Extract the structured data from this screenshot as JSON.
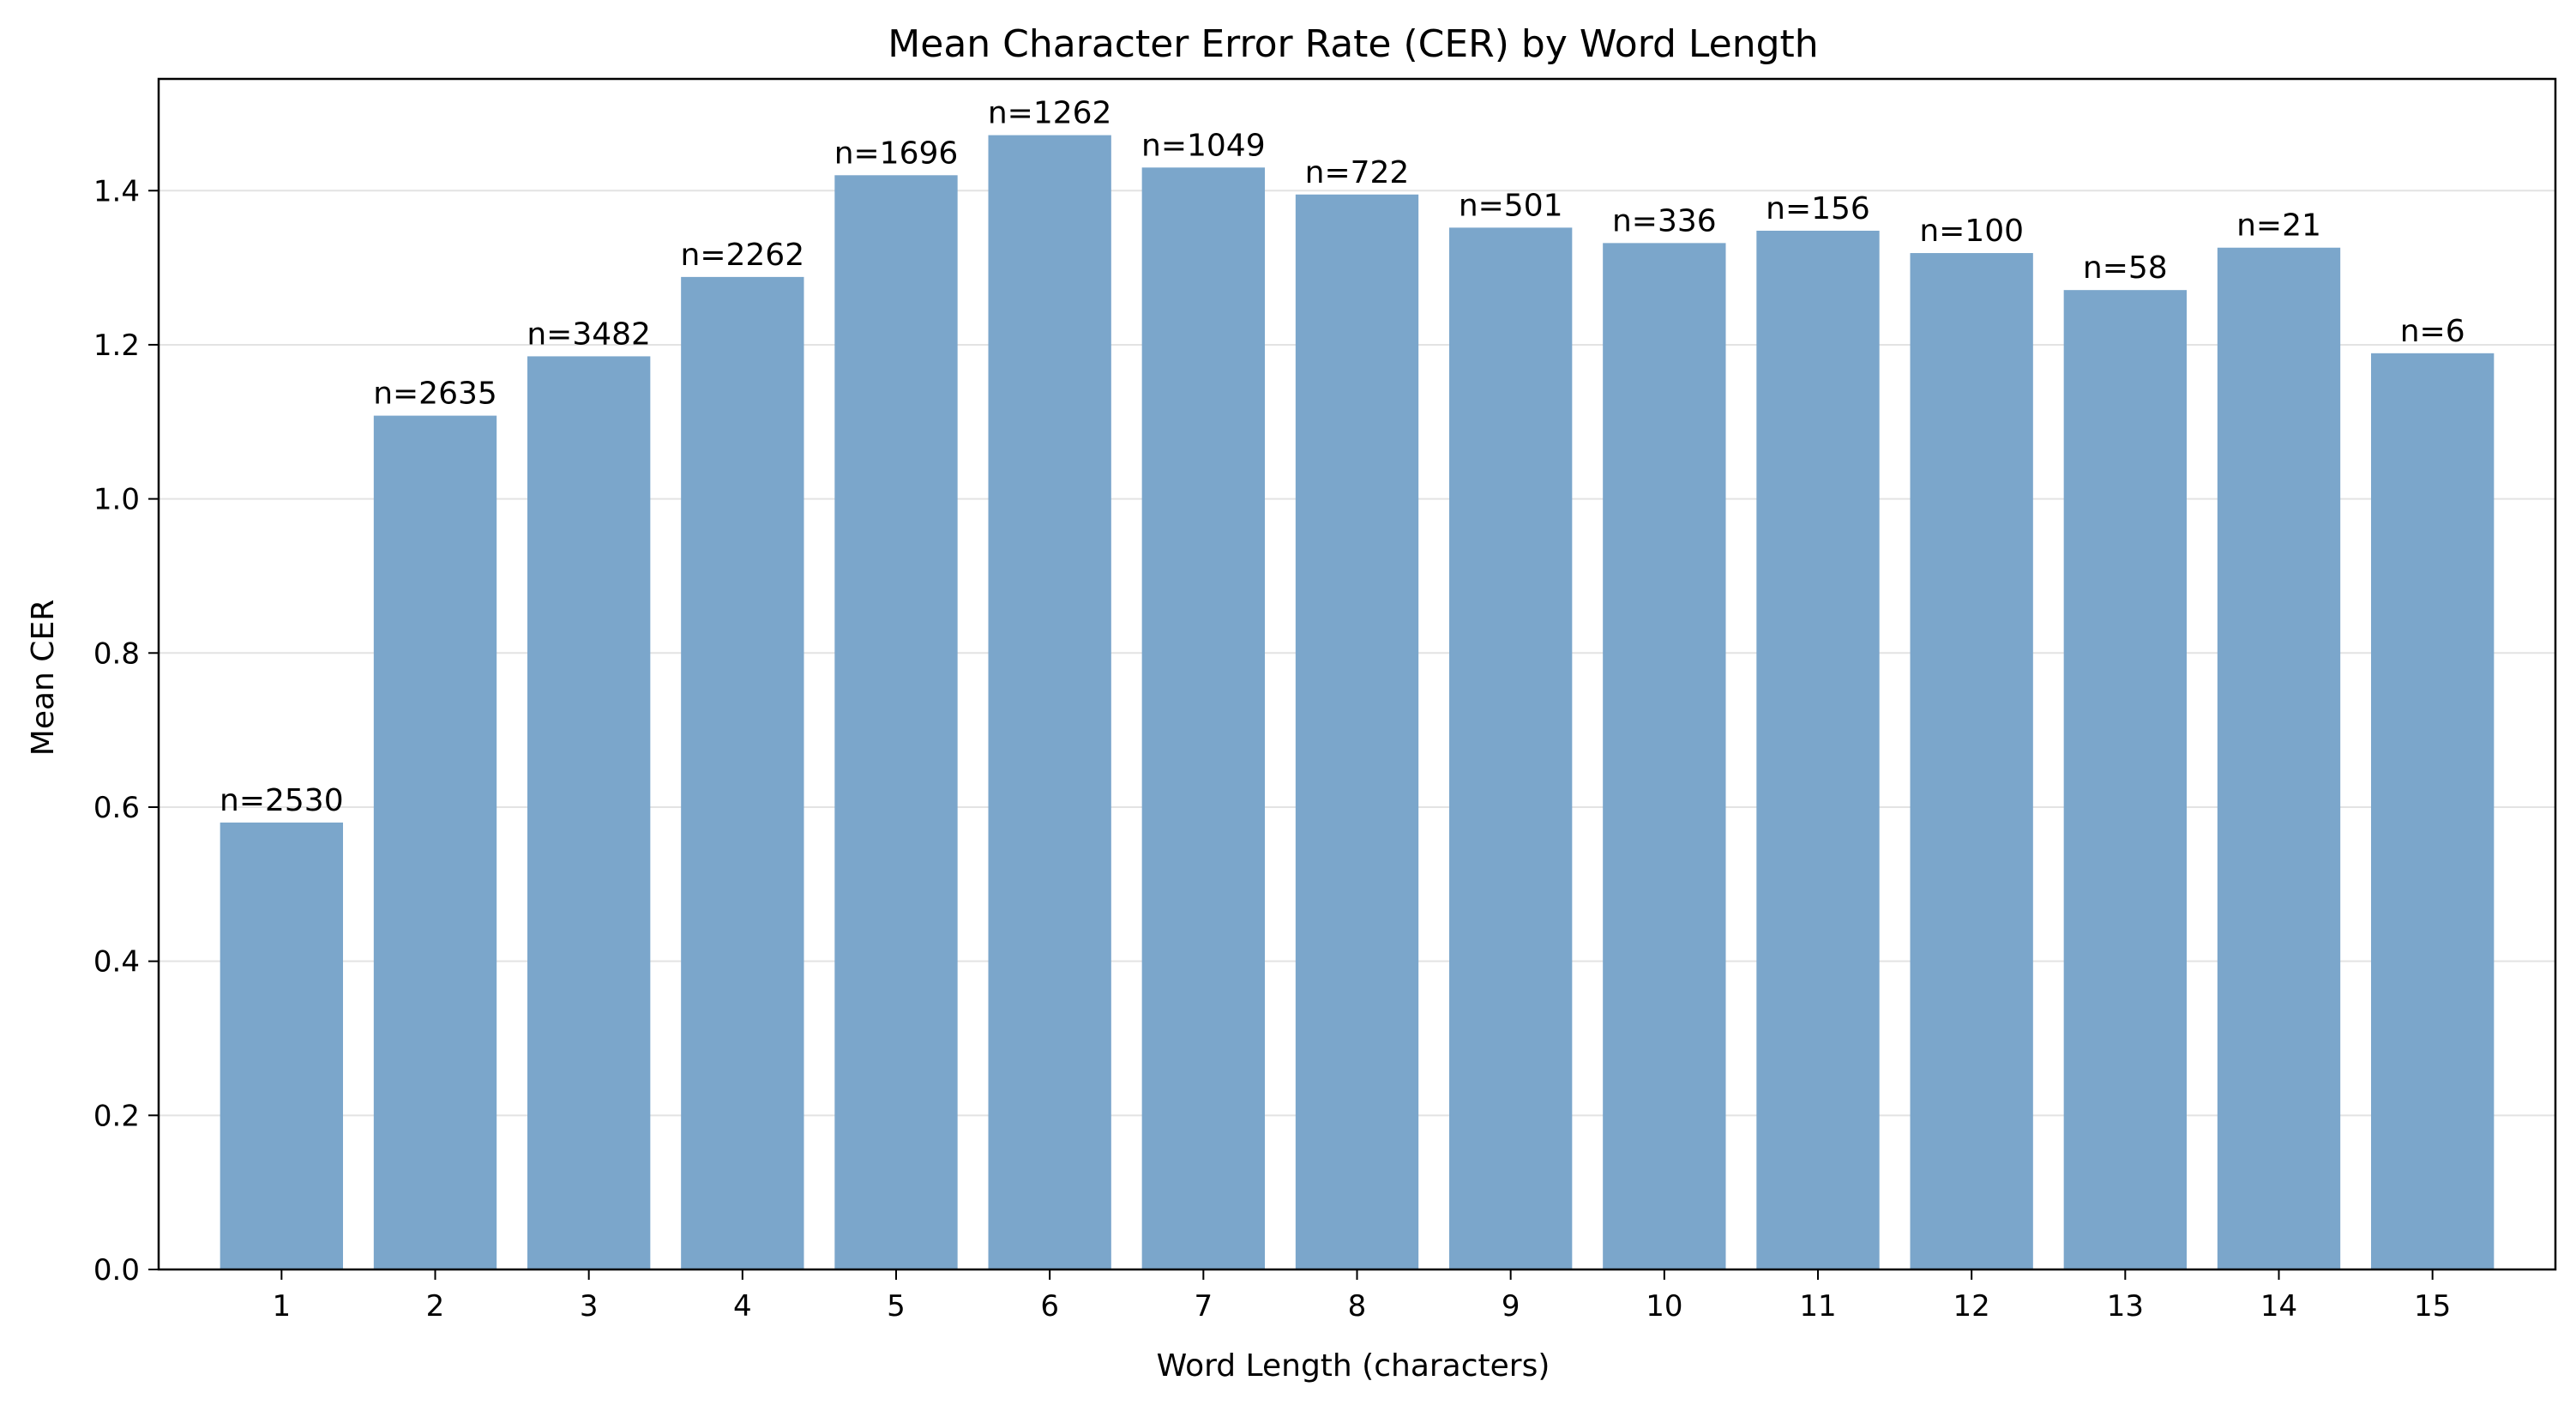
{
  "chart_data": {
    "type": "bar",
    "title": "Mean Character Error Rate (CER) by Word Length",
    "xlabel": "Word Length (characters)",
    "ylabel": "Mean CER",
    "categories": [
      "1",
      "2",
      "3",
      "4",
      "5",
      "6",
      "7",
      "8",
      "9",
      "10",
      "11",
      "12",
      "13",
      "14",
      "15"
    ],
    "values": [
      0.58,
      1.108,
      1.185,
      1.288,
      1.42,
      1.472,
      1.43,
      1.395,
      1.352,
      1.332,
      1.348,
      1.319,
      1.271,
      1.326,
      1.189
    ],
    "data_labels": [
      "n=2530",
      "n=2635",
      "n=3482",
      "n=2262",
      "n=1696",
      "n=1262",
      "n=1049",
      "n=722",
      "n=501",
      "n=336",
      "n=156",
      "n=100",
      "n=58",
      "n=21",
      "n=6"
    ],
    "ylim": [
      0,
      1.545
    ],
    "yticks": [
      0.0,
      0.2,
      0.4,
      0.6,
      0.8,
      1.0,
      1.2,
      1.4
    ],
    "ytick_labels": [
      "0.0",
      "0.2",
      "0.4",
      "0.6",
      "0.8",
      "1.0",
      "1.2",
      "1.4"
    ],
    "grid": "horizontal",
    "bar_color": "#7ba6cb"
  }
}
